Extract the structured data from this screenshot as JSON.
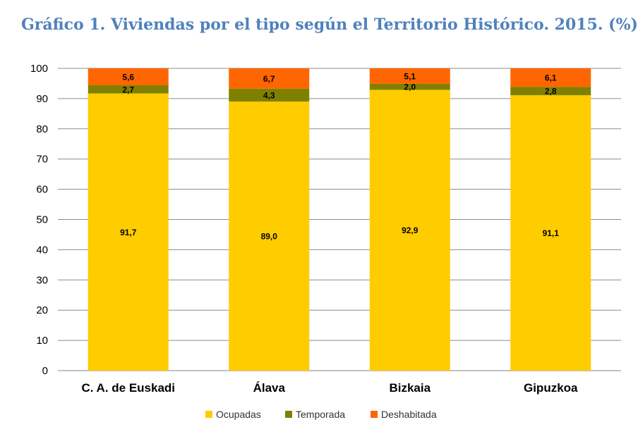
{
  "title": "Gráfico 1. Viviendas por el tipo según el Territorio Histórico. 2015. (%)",
  "chart_data": {
    "type": "bar",
    "stacked": true,
    "title": "Gráfico 1. Viviendas por el tipo según el Territorio Histórico. 2015. (%)",
    "categories": [
      "C. A. de Euskadi",
      "Álava",
      "Bizkaia",
      "Gipuzkoa"
    ],
    "series": [
      {
        "name": "Ocupadas",
        "color": "#ffcc00",
        "values": [
          91.7,
          89.0,
          92.9,
          91.1
        ],
        "labels": [
          "91,7",
          "89,0",
          "92,9",
          "91,1"
        ]
      },
      {
        "name": "Temporada",
        "color": "#808000",
        "values": [
          2.7,
          4.3,
          2.0,
          2.8
        ],
        "labels": [
          "2,7",
          "4,3",
          "2,0",
          "2,8"
        ]
      },
      {
        "name": "Deshabitada",
        "color": "#ff6600",
        "values": [
          5.6,
          6.7,
          5.1,
          6.1
        ],
        "labels": [
          "5,6",
          "6,7",
          "5,1",
          "6,1"
        ]
      }
    ],
    "ylim": [
      0,
      100
    ],
    "yticks": [
      0,
      10,
      20,
      30,
      40,
      50,
      60,
      70,
      80,
      90,
      100
    ],
    "grid": true,
    "legend": "bottom",
    "xlabel": "",
    "ylabel": ""
  }
}
